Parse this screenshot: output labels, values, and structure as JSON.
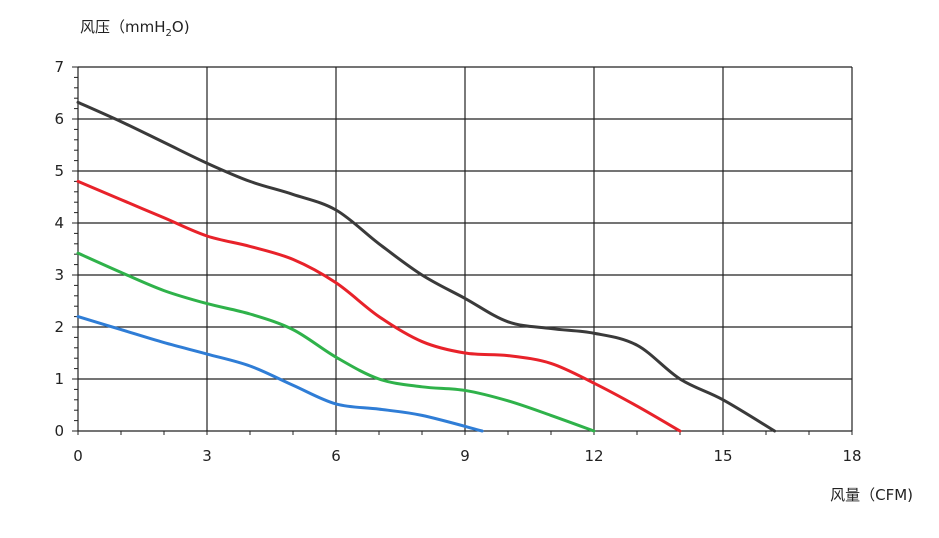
{
  "chart_data": {
    "type": "line",
    "ylabel": {
      "prefix": "风压（mmH",
      "subscript": "2",
      "suffix": "O)"
    },
    "xlabel": "风量（CFM)",
    "xlim": [
      0,
      18
    ],
    "ylim": [
      0,
      7
    ],
    "x_ticks": [
      "0",
      "3",
      "6",
      "9",
      "12",
      "15",
      "18"
    ],
    "y_ticks": [
      "0",
      "1",
      "2",
      "3",
      "4",
      "5",
      "6",
      "7"
    ],
    "grid": true,
    "series": [
      {
        "color": "#3a3a3a",
        "points": [
          [
            0,
            6.32
          ],
          [
            1,
            5.95
          ],
          [
            2,
            5.55
          ],
          [
            3,
            5.15
          ],
          [
            4,
            4.8
          ],
          [
            5,
            4.55
          ],
          [
            6,
            4.25
          ],
          [
            7,
            3.6
          ],
          [
            8,
            3.0
          ],
          [
            9,
            2.55
          ],
          [
            10,
            2.1
          ],
          [
            11,
            1.97
          ],
          [
            12,
            1.88
          ],
          [
            13,
            1.65
          ],
          [
            14,
            1.0
          ],
          [
            15,
            0.6
          ],
          [
            16.2,
            0.0
          ]
        ]
      },
      {
        "color": "#e8222a",
        "points": [
          [
            0,
            4.8
          ],
          [
            1,
            4.45
          ],
          [
            2,
            4.1
          ],
          [
            3,
            3.75
          ],
          [
            4,
            3.55
          ],
          [
            5,
            3.3
          ],
          [
            6,
            2.85
          ],
          [
            7,
            2.2
          ],
          [
            8,
            1.72
          ],
          [
            9,
            1.5
          ],
          [
            10,
            1.45
          ],
          [
            11,
            1.3
          ],
          [
            12,
            0.92
          ],
          [
            13,
            0.48
          ],
          [
            14,
            0.0
          ]
        ]
      },
      {
        "color": "#2fb24a",
        "points": [
          [
            0,
            3.42
          ],
          [
            1,
            3.05
          ],
          [
            2,
            2.7
          ],
          [
            3,
            2.45
          ],
          [
            4,
            2.25
          ],
          [
            5,
            1.95
          ],
          [
            6,
            1.42
          ],
          [
            7,
            1.0
          ],
          [
            8,
            0.85
          ],
          [
            9,
            0.78
          ],
          [
            10,
            0.58
          ],
          [
            11,
            0.3
          ],
          [
            12,
            0.0
          ]
        ]
      },
      {
        "color": "#2f7dd6",
        "points": [
          [
            0,
            2.2
          ],
          [
            1,
            1.95
          ],
          [
            2,
            1.7
          ],
          [
            3,
            1.48
          ],
          [
            4,
            1.25
          ],
          [
            5,
            0.88
          ],
          [
            6,
            0.52
          ],
          [
            7,
            0.42
          ],
          [
            8,
            0.3
          ],
          [
            9.4,
            0.0
          ]
        ]
      }
    ]
  }
}
